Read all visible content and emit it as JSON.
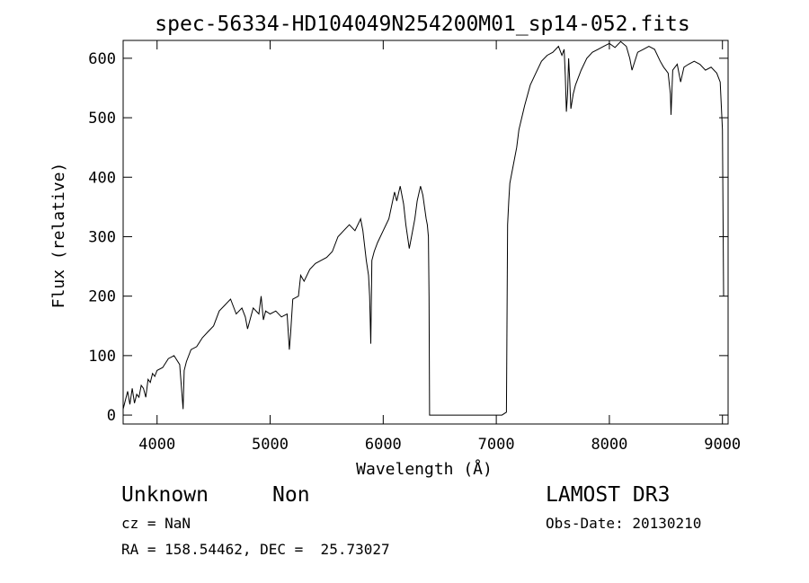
{
  "chart_data": {
    "type": "line",
    "title": "spec-56334-HD104049N254200M01_sp14-052.fits",
    "xlabel": "Wavelength (Å)",
    "ylabel": "Flux (relative)",
    "xlim": [
      3700,
      9050
    ],
    "ylim": [
      -15,
      630
    ],
    "xticks": [
      4000,
      5000,
      6000,
      7000,
      8000,
      9000
    ],
    "yticks": [
      0,
      100,
      200,
      300,
      400,
      500,
      600
    ],
    "grid": false,
    "series": [
      {
        "x": [
          3700,
          3720,
          3740,
          3760,
          3780,
          3800,
          3820,
          3840,
          3860,
          3880,
          3900,
          3920,
          3940,
          3960,
          3980,
          4000,
          4050,
          4100,
          4150,
          4200,
          4230,
          4240,
          4260,
          4300,
          4350,
          4400,
          4450,
          4500,
          4550,
          4600,
          4650,
          4700,
          4750,
          4780,
          4800,
          4850,
          4900,
          4920,
          4940,
          4960,
          5000,
          5050,
          5100,
          5150,
          5170,
          5180,
          5200,
          5250,
          5270,
          5300,
          5350,
          5400,
          5450,
          5500,
          5550,
          5600,
          5650,
          5700,
          5750,
          5800,
          5820,
          5850,
          5870,
          5880,
          5890,
          5900,
          5920,
          5950,
          6000,
          6050,
          6100,
          6120,
          6150,
          6180,
          6200,
          6230,
          6250,
          6280,
          6300,
          6330,
          6350,
          6380,
          6390,
          6400,
          6405,
          6410,
          6420,
          6500,
          6700,
          6900,
          7050,
          7090,
          7100,
          7110,
          7120,
          7150,
          7180,
          7200,
          7250,
          7300,
          7350,
          7400,
          7450,
          7500,
          7550,
          7580,
          7600,
          7610,
          7620,
          7630,
          7640,
          7650,
          7660,
          7680,
          7700,
          7750,
          7800,
          7850,
          7900,
          7950,
          8000,
          8050,
          8100,
          8150,
          8180,
          8200,
          8250,
          8300,
          8350,
          8400,
          8450,
          8480,
          8500,
          8520,
          8540,
          8545,
          8560,
          8600,
          8630,
          8660,
          8700,
          8750,
          8800,
          8850,
          8900,
          8950,
          8980,
          9000,
          9010
        ],
        "y": [
          10,
          25,
          40,
          18,
          45,
          20,
          35,
          30,
          50,
          45,
          30,
          60,
          55,
          70,
          65,
          75,
          80,
          95,
          100,
          85,
          10,
          75,
          90,
          110,
          115,
          130,
          140,
          150,
          175,
          185,
          195,
          170,
          180,
          165,
          145,
          180,
          170,
          200,
          160,
          175,
          170,
          175,
          165,
          170,
          110,
          135,
          195,
          200,
          235,
          225,
          245,
          255,
          260,
          265,
          275,
          300,
          310,
          320,
          310,
          330,
          310,
          260,
          235,
          200,
          120,
          260,
          275,
          290,
          310,
          330,
          375,
          360,
          385,
          355,
          320,
          280,
          300,
          330,
          360,
          385,
          370,
          330,
          320,
          300,
          200,
          0,
          0,
          0,
          0,
          0,
          0,
          5,
          320,
          360,
          390,
          420,
          450,
          480,
          520,
          555,
          575,
          595,
          605,
          610,
          620,
          605,
          615,
          570,
          510,
          540,
          600,
          560,
          515,
          540,
          555,
          580,
          600,
          610,
          615,
          620,
          625,
          618,
          628,
          620,
          600,
          580,
          610,
          615,
          620,
          615,
          595,
          585,
          580,
          575,
          540,
          505,
          580,
          590,
          560,
          585,
          590,
          595,
          590,
          580,
          585,
          575,
          560,
          480,
          200
        ]
      }
    ],
    "annotations": {
      "object_name": "Unknown",
      "object_class": "Non",
      "survey": "LAMOST DR3",
      "redshift": "cz = NaN",
      "obs_date": "Obs-Date: 20130210",
      "coordinates": "RA = 158.54462, DEC =  25.73027"
    }
  }
}
